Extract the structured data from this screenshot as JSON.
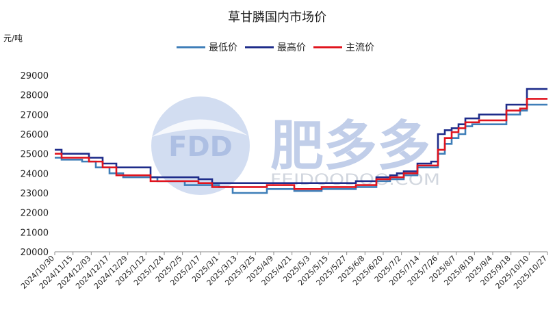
{
  "chart_data": {
    "type": "line",
    "title": "草甘膦国内市场价",
    "unit": "元/吨",
    "legend_position": "top",
    "ylim": [
      20000,
      29000
    ],
    "y_ticks": [
      20000,
      21000,
      22000,
      23000,
      24000,
      25000,
      26000,
      27000,
      28000,
      29000
    ],
    "x_ticks": [
      "2024/10/30",
      "2024/11/15",
      "2024/12/03",
      "2024/12/17",
      "2024/12/29",
      "2025/1/12",
      "2025/1/24",
      "2025/2/5",
      "2025/2/17",
      "2025/3/1",
      "2025/3/13",
      "2025/3/25",
      "2025/4/9",
      "2025/4/21",
      "2025/5/3",
      "2025/5/15",
      "2025/5/27",
      "2025/6/8",
      "2025/6/20",
      "2025/7/2",
      "2025/7/14",
      "2025/7/26",
      "2025/8/7",
      "2025/8/19",
      "2025/9/4",
      "2025/9/18",
      "2025/10/10",
      "2025/10/27"
    ],
    "x_count": 73,
    "series": [
      {
        "name": "最低价",
        "color": "#3e7eb8",
        "values": [
          24800,
          24700,
          24700,
          24700,
          24600,
          24600,
          24300,
          24300,
          24000,
          24000,
          23800,
          23800,
          23800,
          23800,
          23800,
          23600,
          23600,
          23600,
          23600,
          23400,
          23400,
          23400,
          23400,
          23400,
          23300,
          23300,
          23000,
          23000,
          23000,
          23000,
          23000,
          23200,
          23200,
          23200,
          23200,
          23100,
          23100,
          23100,
          23100,
          23200,
          23200,
          23200,
          23200,
          23200,
          23300,
          23300,
          23300,
          23600,
          23600,
          23700,
          23700,
          23900,
          23900,
          24300,
          24300,
          24300,
          25000,
          25500,
          25800,
          26000,
          26400,
          26500,
          26500,
          26500,
          26500,
          26500,
          27000,
          27000,
          27200,
          27500,
          27500,
          27500,
          27500
        ]
      },
      {
        "name": "最高价",
        "color": "#1e2c8a",
        "values": [
          25200,
          25000,
          25000,
          25000,
          25000,
          24800,
          24800,
          24500,
          24500,
          24300,
          24300,
          24300,
          24300,
          24300,
          23800,
          23800,
          23800,
          23800,
          23800,
          23800,
          23800,
          23700,
          23700,
          23500,
          23500,
          23500,
          23500,
          23500,
          23500,
          23500,
          23500,
          23500,
          23500,
          23500,
          23500,
          23500,
          23500,
          23500,
          23500,
          23500,
          23500,
          23500,
          23500,
          23500,
          23600,
          23600,
          23600,
          23800,
          23800,
          23900,
          24000,
          24100,
          24100,
          24500,
          24500,
          24600,
          26000,
          26200,
          26300,
          26500,
          26800,
          26800,
          27000,
          27000,
          27000,
          27000,
          27500,
          27500,
          27500,
          28300,
          28300,
          28300,
          28300
        ]
      },
      {
        "name": "主流价",
        "color": "#e0141e",
        "values": [
          25000,
          24800,
          24800,
          24800,
          24800,
          24600,
          24600,
          24300,
          24300,
          23900,
          23900,
          23900,
          23900,
          23900,
          23600,
          23600,
          23600,
          23600,
          23600,
          23600,
          23600,
          23500,
          23500,
          23300,
          23300,
          23300,
          23300,
          23300,
          23300,
          23300,
          23300,
          23400,
          23400,
          23400,
          23400,
          23200,
          23200,
          23200,
          23200,
          23300,
          23300,
          23300,
          23300,
          23300,
          23400,
          23400,
          23400,
          23700,
          23700,
          23800,
          23800,
          24000,
          24000,
          24400,
          24400,
          24400,
          25200,
          25800,
          26100,
          26300,
          26600,
          26600,
          26700,
          26700,
          26700,
          26700,
          27200,
          27200,
          27300,
          27800,
          27800,
          27800,
          27800
        ]
      }
    ]
  },
  "watermark": {
    "logo_text": "FDD",
    "brand_text": "肥多多",
    "domain_text": "FEIDOODOO.COM"
  }
}
